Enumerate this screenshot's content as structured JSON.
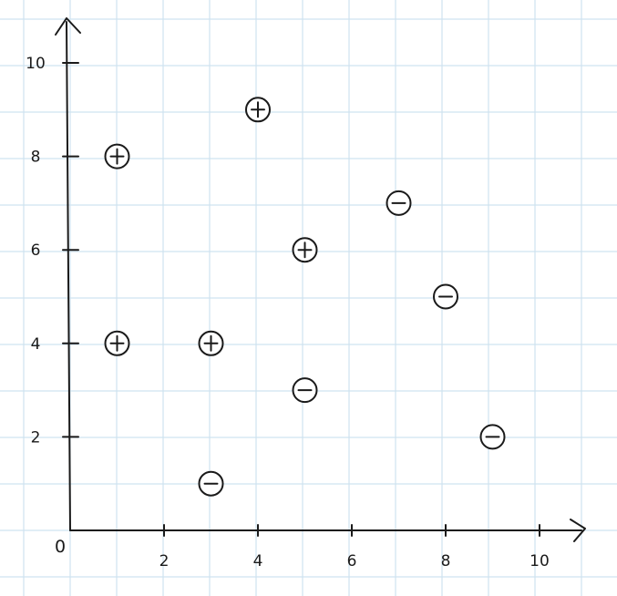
{
  "chart_data": {
    "type": "scatter",
    "title": "",
    "xlabel": "",
    "ylabel": "",
    "xlim": [
      0,
      11
    ],
    "ylim": [
      0,
      10.8
    ],
    "grid": true,
    "origin_label": "0",
    "x_ticks": [
      2,
      4,
      6,
      8,
      10
    ],
    "y_ticks": [
      2,
      4,
      6,
      8,
      10
    ],
    "series": [
      {
        "marker": "plus",
        "points": [
          {
            "x": 1,
            "y": 8
          },
          {
            "x": 1,
            "y": 4
          },
          {
            "x": 3,
            "y": 4
          },
          {
            "x": 4,
            "y": 9
          },
          {
            "x": 5,
            "y": 6
          }
        ]
      },
      {
        "marker": "minus",
        "points": [
          {
            "x": 3,
            "y": 1
          },
          {
            "x": 5,
            "y": 3
          },
          {
            "x": 7,
            "y": 7
          },
          {
            "x": 8,
            "y": 5
          },
          {
            "x": 9,
            "y": 2
          }
        ]
      }
    ],
    "colors": {
      "ink": "#1a1a1a",
      "grid": "#cfe3f0",
      "background": "#ffffff"
    }
  }
}
